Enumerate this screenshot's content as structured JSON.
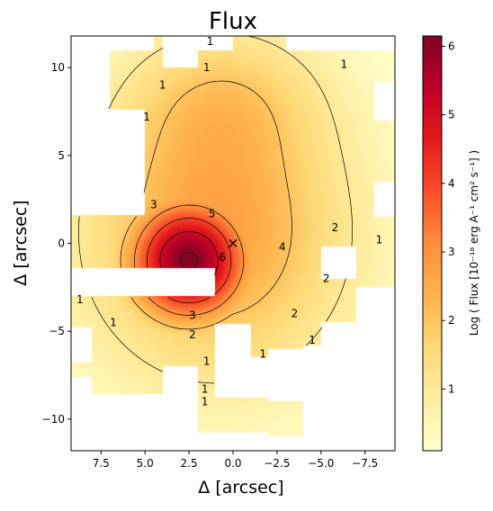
{
  "chart_data": [
    {
      "type": "heatmap",
      "title": "Flux",
      "xlabel": "Δ [arcsec]",
      "ylabel": "Δ [arcsec]",
      "xlim": [
        9.2,
        -9.2
      ],
      "ylim": [
        -11.8,
        11.8
      ],
      "x_inverted": true,
      "xticks": [
        {
          "value": 7.5,
          "label": "7.5"
        },
        {
          "value": 5.0,
          "label": "5.0"
        },
        {
          "value": 2.5,
          "label": "2.5"
        },
        {
          "value": 0.0,
          "label": "0.0"
        },
        {
          "value": -2.5,
          "label": "−2.5"
        },
        {
          "value": -5.0,
          "label": "−5.0"
        },
        {
          "value": -7.5,
          "label": "−7.5"
        }
      ],
      "yticks": [
        {
          "value": 10,
          "label": "10"
        },
        {
          "value": 5,
          "label": "5"
        },
        {
          "value": 0,
          "label": "0"
        },
        {
          "value": -5,
          "label": "−5"
        },
        {
          "value": -10,
          "label": "−10"
        }
      ],
      "colormap": "YlOrRd",
      "peak": {
        "x": 0.0,
        "y": 0.0,
        "marker": "×"
      },
      "source": {
        "x": 2.5,
        "y": -1.0,
        "sx": 2.6,
        "sy": 2.6,
        "angle_deg": 20,
        "peak_log_flux": 6.1
      },
      "contour_levels": [
        1,
        2,
        3,
        4,
        5,
        6
      ],
      "contour_labels": [
        {
          "level": 1,
          "x": 1.3,
          "y": 11.5,
          "text": "1"
        },
        {
          "level": 1,
          "x": 1.5,
          "y": 10.0,
          "text": "1"
        },
        {
          "level": 1,
          "x": 4.0,
          "y": 9.0,
          "text": "1"
        },
        {
          "level": 1,
          "x": 4.9,
          "y": 7.2,
          "text": "1"
        },
        {
          "level": 1,
          "x": -6.3,
          "y": 10.2,
          "text": "1"
        },
        {
          "level": 1,
          "x": -8.3,
          "y": 0.2,
          "text": "1"
        },
        {
          "level": 1,
          "x": 8.7,
          "y": -3.2,
          "text": "1"
        },
        {
          "level": 1,
          "x": 6.8,
          "y": -4.5,
          "text": "1"
        },
        {
          "level": 1,
          "x": -4.5,
          "y": -5.5,
          "text": "1"
        },
        {
          "level": 1,
          "x": -1.7,
          "y": -6.3,
          "text": "1"
        },
        {
          "level": 1,
          "x": 1.5,
          "y": -6.7,
          "text": "1"
        },
        {
          "level": 1,
          "x": 1.6,
          "y": -8.3,
          "text": "1"
        },
        {
          "level": 1,
          "x": 1.6,
          "y": -9.0,
          "text": "1"
        },
        {
          "level": 2,
          "x": 2.3,
          "y": -5.2,
          "text": "2"
        },
        {
          "level": 2,
          "x": -3.5,
          "y": -4.0,
          "text": "2"
        },
        {
          "level": 2,
          "x": -5.3,
          "y": -2.0,
          "text": "2"
        },
        {
          "level": 2,
          "x": -5.8,
          "y": 0.9,
          "text": "2"
        },
        {
          "level": 3,
          "x": 2.3,
          "y": -4.1,
          "text": "3"
        },
        {
          "level": 3,
          "x": 4.5,
          "y": 2.2,
          "text": "3"
        },
        {
          "level": 4,
          "x": -2.8,
          "y": -0.2,
          "text": "4"
        },
        {
          "level": 5,
          "x": 1.2,
          "y": 1.7,
          "text": "5"
        },
        {
          "level": 6,
          "x": 0.6,
          "y": -0.8,
          "text": "6"
        }
      ],
      "colorbar": {
        "label": "Log ( Flux [10⁻¹⁸ erg A⁻¹ cm² s⁻¹] )",
        "range": [
          0.1,
          6.15
        ],
        "ticks": [
          {
            "value": 1,
            "label": "1"
          },
          {
            "value": 2,
            "label": "2"
          },
          {
            "value": 3,
            "label": "3"
          },
          {
            "value": 4,
            "label": "4"
          },
          {
            "value": 5,
            "label": "5"
          },
          {
            "value": 6,
            "label": "6"
          }
        ]
      }
    }
  ]
}
